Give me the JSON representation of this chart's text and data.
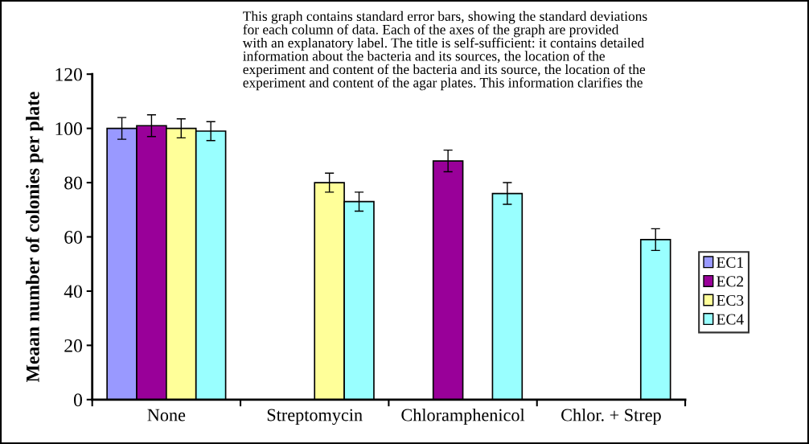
{
  "chart_data": {
    "type": "bar",
    "ylabel": "Meaan number of colonies per plate",
    "categories": [
      "None",
      "Streptomycin",
      "Chloramphenicol",
      "Chlor. + Strep"
    ],
    "series": [
      {
        "name": "EC1",
        "color": "#9999ff",
        "values": [
          100,
          null,
          null,
          null
        ],
        "errors": [
          4,
          null,
          null,
          null
        ]
      },
      {
        "name": "EC2",
        "color": "#990099",
        "values": [
          101,
          null,
          88,
          null
        ],
        "errors": [
          4,
          null,
          4,
          null
        ]
      },
      {
        "name": "EC3",
        "color": "#ffff99",
        "values": [
          100,
          80,
          null,
          null
        ],
        "errors": [
          3.5,
          3.5,
          null,
          null
        ]
      },
      {
        "name": "EC4",
        "color": "#99ffff",
        "values": [
          99,
          73,
          76,
          59
        ],
        "errors": [
          3.5,
          3.5,
          4,
          4
        ]
      }
    ],
    "ylim": [
      0,
      120
    ],
    "yticks": [
      0,
      20,
      40,
      60,
      80,
      100,
      120
    ],
    "grid": false,
    "legend": "right",
    "annotations": [
      "This graph contains standard error bars, showing the standard deviations\nfor each column of data. Each of the axes of the graph are provided\nwith an explanatory label. The title is self-sufficient: it contains detailed\ninformation about the bacteria and its sources, the location of the\nexperiment and content of the bacteria and its source, the location of the\nexperiment and content of the agar plates. This information clarifies the"
    ]
  }
}
